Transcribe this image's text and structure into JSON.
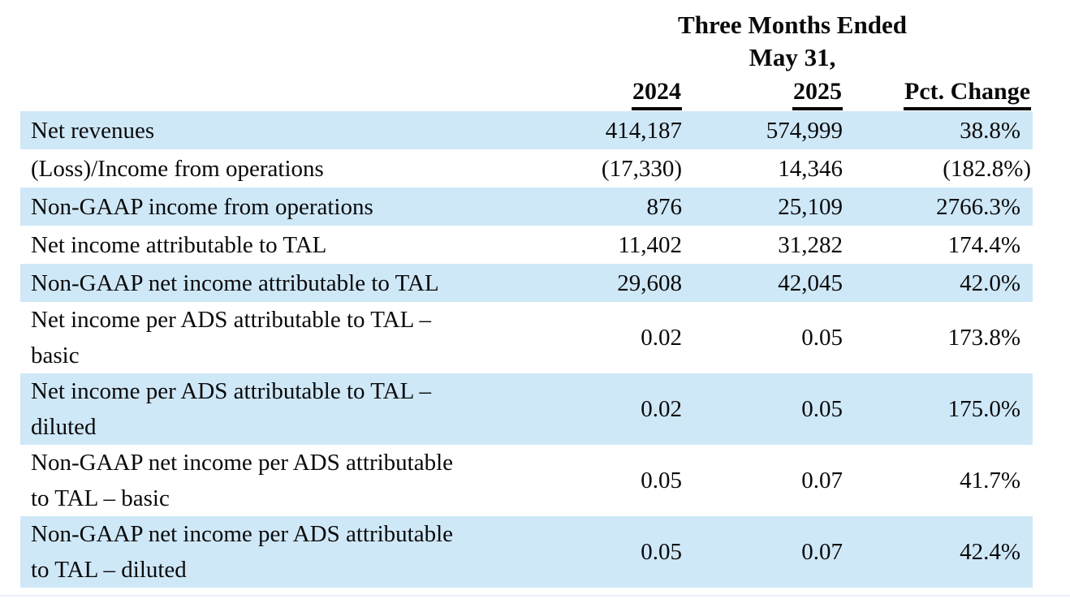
{
  "colors": {
    "row_shade": "#cfe8f8",
    "rule": "#eaf0f6",
    "text": "#0a0a0a"
  },
  "table": {
    "header": {
      "period_line1": "Three Months Ended",
      "period_line2": "May 31,",
      "col_2024": "2024",
      "col_2025": "2025",
      "col_pct": "Pct. Change"
    },
    "rows": [
      {
        "label": "Net revenues",
        "y2024": "414,187",
        "y2025": "574,999",
        "pct": "38.8%"
      },
      {
        "label": "(Loss)/Income from operations",
        "y2024": "(17,330)",
        "y2025": "14,346",
        "pct": "(182.8%)"
      },
      {
        "label": "Non-GAAP income from operations",
        "y2024": "876",
        "y2025": "25,109",
        "pct": "2766.3%"
      },
      {
        "label": "Net income attributable to TAL",
        "y2024": "11,402",
        "y2025": "31,282",
        "pct": "174.4%"
      },
      {
        "label": "Non-GAAP net income attributable to TAL",
        "y2024": "29,608",
        "y2025": "42,045",
        "pct": "42.0%"
      },
      {
        "label": [
          "Net income per ADS attributable to TAL –",
          "basic"
        ],
        "y2024": "0.02",
        "y2025": "0.05",
        "pct": "173.8%"
      },
      {
        "label": [
          "Net income per ADS attributable to TAL –",
          "diluted"
        ],
        "y2024": "0.02",
        "y2025": "0.05",
        "pct": "175.0%"
      },
      {
        "label": [
          "Non-GAAP net income per ADS attributable",
          "to TAL – basic"
        ],
        "y2024": "0.05",
        "y2025": "0.07",
        "pct": "41.7%"
      },
      {
        "label": [
          "Non-GAAP net income per ADS attributable",
          "to TAL – diluted"
        ],
        "y2024": "0.05",
        "y2025": "0.07",
        "pct": "42.4%"
      }
    ]
  }
}
